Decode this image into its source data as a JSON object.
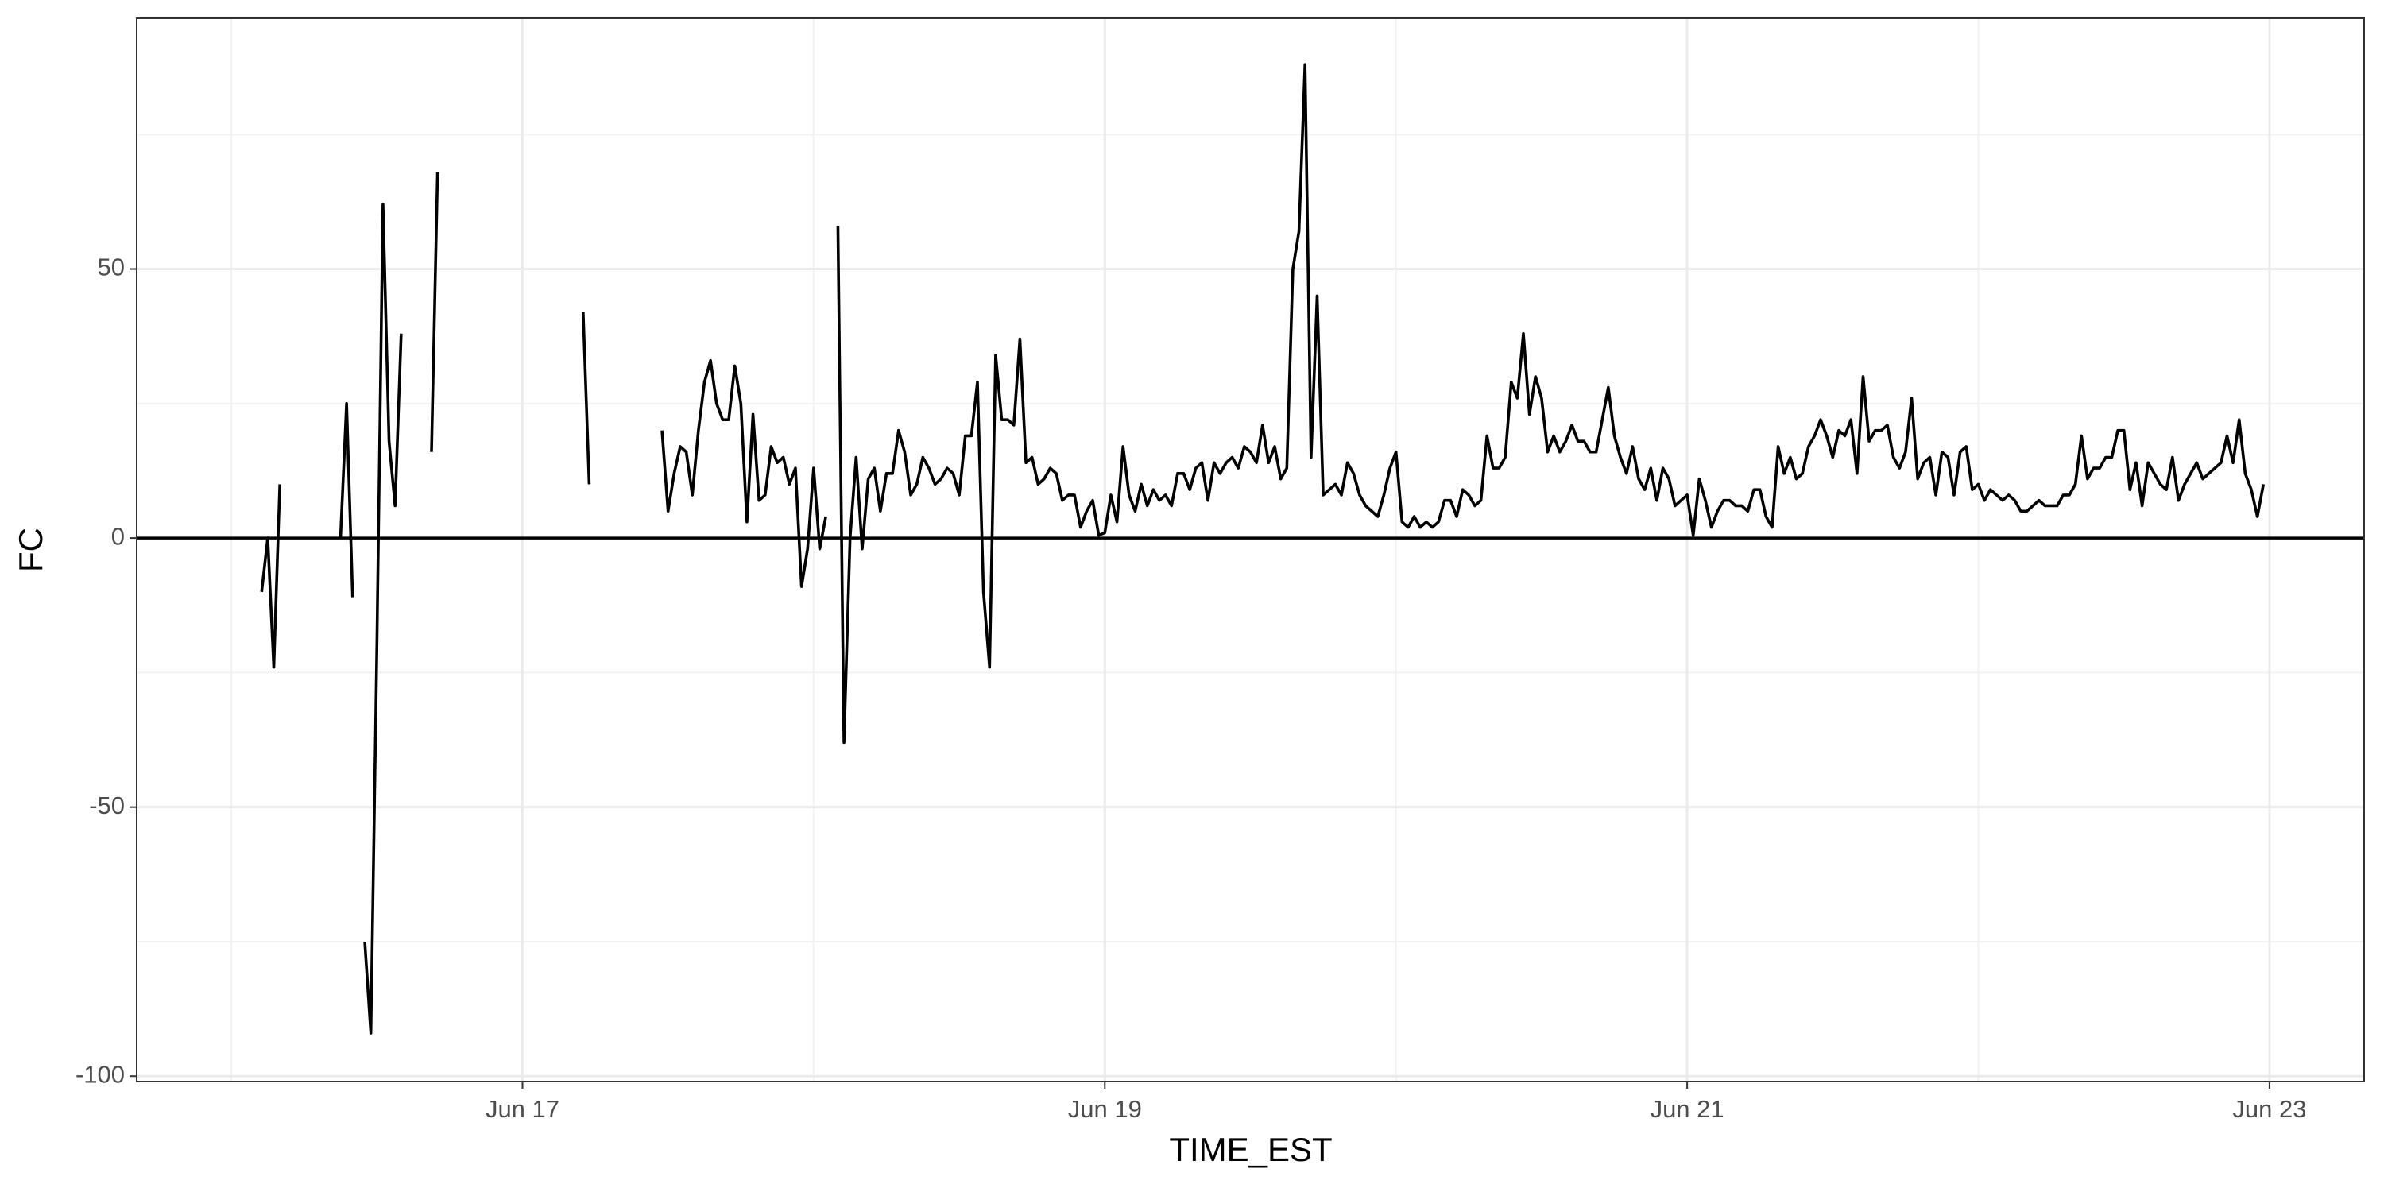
{
  "chart_data": {
    "type": "line",
    "x_label": "TIME_EST",
    "y_label": "FC",
    "color": "#000000",
    "grid": true,
    "hline": 0,
    "xlim": [
      -7.8,
      175.8
    ],
    "xticks": [
      {
        "value": 24,
        "label": "Jun 17"
      },
      {
        "value": 72,
        "label": "Jun 19"
      },
      {
        "value": 120,
        "label": "Jun 21"
      },
      {
        "value": 168,
        "label": "Jun 23"
      }
    ],
    "ylim": [
      -101,
      96.6
    ],
    "yticks": [
      -100,
      -50,
      0,
      50
    ],
    "x": [
      2.5,
      3,
      3.5,
      4,
      4.5,
      9,
      9.5,
      10,
      10.5,
      11,
      11.5,
      12,
      12.5,
      13,
      13.5,
      14,
      14.5,
      16.5,
      17,
      17.5,
      29,
      29.5,
      30,
      35.5,
      36,
      36.5,
      37,
      37.5,
      38,
      38.5,
      39,
      39.5,
      40,
      40.5,
      41,
      41.5,
      42,
      42.5,
      43,
      43.5,
      44,
      44.5,
      45,
      45.5,
      46,
      46.5,
      47,
      47.5,
      48,
      48.5,
      49,
      49.5,
      50,
      50.5,
      51,
      51.5,
      52,
      52.5,
      53,
      53.5,
      54,
      54.5,
      55,
      55.5,
      56,
      56.5,
      57,
      57.5,
      58,
      58.5,
      59,
      59.5,
      60,
      60.5,
      61,
      61.5,
      62,
      62.5,
      63,
      63.5,
      64,
      64.5,
      65,
      65.5,
      66,
      66.5,
      67,
      67.5,
      68,
      68.5,
      69,
      69.5,
      70,
      70.5,
      71,
      71.5,
      72,
      72.5,
      73,
      73.5,
      74,
      74.5,
      75,
      75.5,
      76,
      76.5,
      77,
      77.5,
      78,
      78.5,
      79,
      79.5,
      80,
      80.5,
      81,
      81.5,
      82,
      82.5,
      83,
      83.5,
      84,
      84.5,
      85,
      85.5,
      86,
      86.5,
      87,
      87.5,
      88,
      88.5,
      89,
      89.5,
      90,
      90.5,
      91,
      91.5,
      92,
      92.5,
      93,
      93.5,
      94,
      94.5,
      95,
      95.5,
      96,
      96.5,
      97,
      97.5,
      98,
      98.5,
      99,
      99.5,
      100,
      100.5,
      101,
      101.5,
      102,
      102.5,
      103,
      103.5,
      104,
      104.5,
      105,
      105.5,
      106,
      106.5,
      107,
      107.5,
      108,
      108.5,
      109,
      109.5,
      110,
      110.5,
      111,
      111.5,
      112,
      112.5,
      113,
      113.5,
      114,
      114.5,
      115,
      115.5,
      116,
      116.5,
      117,
      117.5,
      118,
      118.5,
      119,
      119.5,
      120,
      120.5,
      121,
      121.5,
      122,
      122.5,
      123,
      123.5,
      124,
      124.5,
      125,
      125.5,
      126,
      126.5,
      127,
      127.5,
      128,
      128.5,
      129,
      129.5,
      130,
      130.5,
      131,
      131.5,
      132,
      132.5,
      133,
      133.5,
      134,
      134.5,
      135,
      135.5,
      136,
      136.5,
      137,
      137.5,
      138,
      138.5,
      139,
      139.5,
      140,
      140.5,
      141,
      141.5,
      142,
      142.5,
      143,
      143.5,
      144,
      144.5,
      145,
      145.5,
      146,
      146.5,
      147,
      147.5,
      148,
      148.5,
      149,
      149.5,
      150,
      150.5,
      151,
      151.5,
      152,
      152.5,
      153,
      153.5,
      154,
      154.5,
      155,
      155.5,
      156,
      156.5,
      157,
      157.5,
      158,
      158.5,
      159,
      159.5,
      160,
      160.5,
      161,
      161.5,
      162,
      162.5,
      163,
      163.5,
      164,
      164.5,
      165,
      165.5,
      166,
      166.5,
      167,
      167.5
    ],
    "values": [
      -10,
      0,
      -24,
      10,
      null,
      0,
      25,
      -11,
      null,
      -75,
      -92,
      -20,
      62,
      18,
      6,
      38,
      null,
      16,
      68,
      null,
      42,
      10,
      null,
      20,
      5,
      12,
      17,
      16,
      8,
      20,
      29,
      33,
      25,
      22,
      22,
      32,
      25,
      3,
      23,
      7,
      8,
      17,
      14,
      15,
      10,
      13,
      -9,
      -2,
      13,
      -2,
      4,
      null,
      58,
      -38,
      0,
      15,
      -2,
      11,
      13,
      5,
      12,
      12,
      20,
      16,
      8,
      10,
      15,
      13,
      10,
      11,
      13,
      12,
      8,
      19,
      19,
      29,
      -10,
      -24,
      34,
      22,
      22,
      21,
      37,
      14,
      15,
      10,
      11,
      13,
      12,
      7,
      8,
      8,
      2,
      5,
      7,
      0.5,
      1,
      8,
      3,
      17,
      8,
      5,
      10,
      6,
      9,
      7,
      8,
      6,
      12,
      12,
      9,
      13,
      14,
      7,
      14,
      12,
      14,
      15,
      13,
      17,
      16,
      14,
      21,
      14,
      17,
      11,
      13,
      50,
      57,
      88,
      15,
      45,
      8,
      9,
      10,
      8,
      14,
      12,
      8,
      6,
      5,
      4,
      8,
      13,
      16,
      3,
      2,
      4,
      2,
      3,
      2,
      3,
      7,
      7,
      4,
      9,
      8,
      6,
      7,
      19,
      13,
      13,
      15,
      29,
      26,
      38,
      23,
      30,
      26,
      16,
      19,
      16,
      18,
      21,
      18,
      18,
      16,
      16,
      22,
      28,
      19,
      15,
      12,
      17,
      11,
      9,
      13,
      7,
      13,
      11,
      6,
      7,
      8,
      0.5,
      11,
      7,
      2,
      5,
      7,
      7,
      6,
      6,
      5,
      9,
      9,
      4,
      2,
      17,
      12,
      15,
      11,
      12,
      17,
      19,
      22,
      19,
      15,
      20,
      19,
      22,
      12,
      30,
      18,
      20,
      20,
      21,
      15,
      13,
      16,
      26,
      11,
      14,
      15,
      8,
      16,
      15,
      8,
      16,
      17,
      9,
      10,
      7,
      9,
      8,
      7,
      8,
      7,
      5,
      5,
      6,
      7,
      6,
      6,
      6,
      8,
      8,
      10,
      19,
      11,
      13,
      13,
      15,
      15,
      20,
      20,
      9,
      14,
      6,
      14,
      12,
      10,
      9,
      15,
      7,
      10,
      12,
      14,
      11,
      12,
      13,
      14,
      19,
      14,
      22,
      12,
      9,
      4,
      10
    ]
  }
}
